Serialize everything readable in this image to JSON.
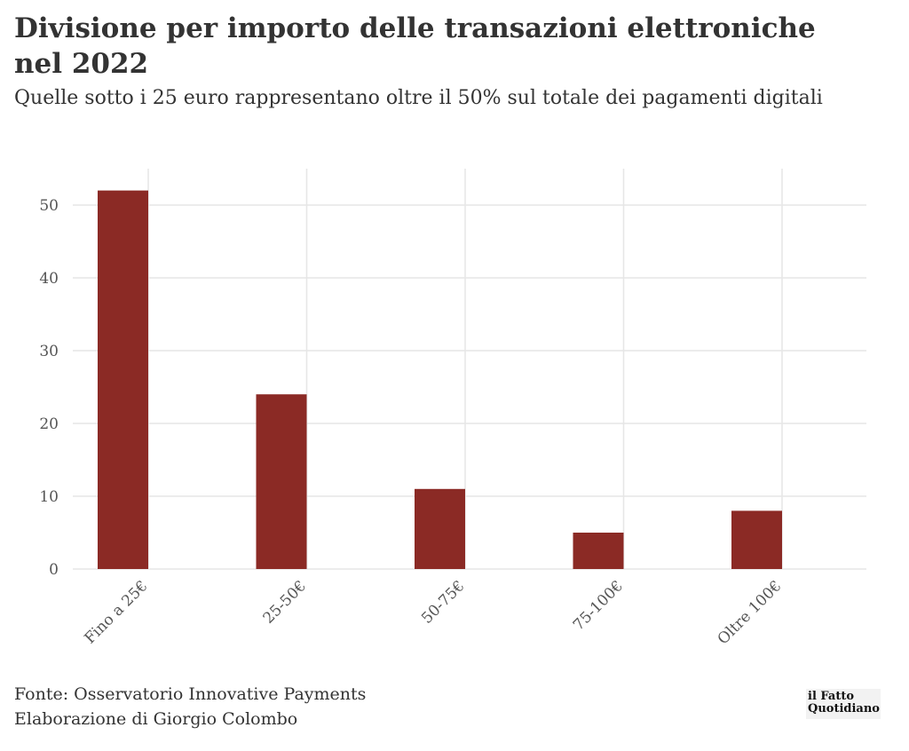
{
  "title": "Divisione per importo delle transazioni elettroniche nel 2022",
  "subtitle": "Quelle sotto i 25 euro rappresentano oltre il 50% sul totale dei pagamenti digitali",
  "footer": {
    "source": "Fonte: Osservatorio Innovative Payments",
    "author": "Elaborazione di Giorgio Colombo"
  },
  "logo": {
    "line1": "il Fatto",
    "line2": "Quotidiano"
  },
  "colors": {
    "bar": "#8b2a25",
    "grid": "#e6e6e6",
    "text": "#333333"
  },
  "chart_data": {
    "type": "bar",
    "categories": [
      "Fino a 25€",
      "25-50€",
      "50-75€",
      "75-100€",
      "Oltre 100€"
    ],
    "values": [
      52,
      24,
      11,
      5,
      8
    ],
    "yticks": [
      0,
      10,
      20,
      30,
      40,
      50
    ],
    "ylim": [
      0,
      55
    ],
    "xlabel": "",
    "ylabel": "",
    "grid": true
  }
}
